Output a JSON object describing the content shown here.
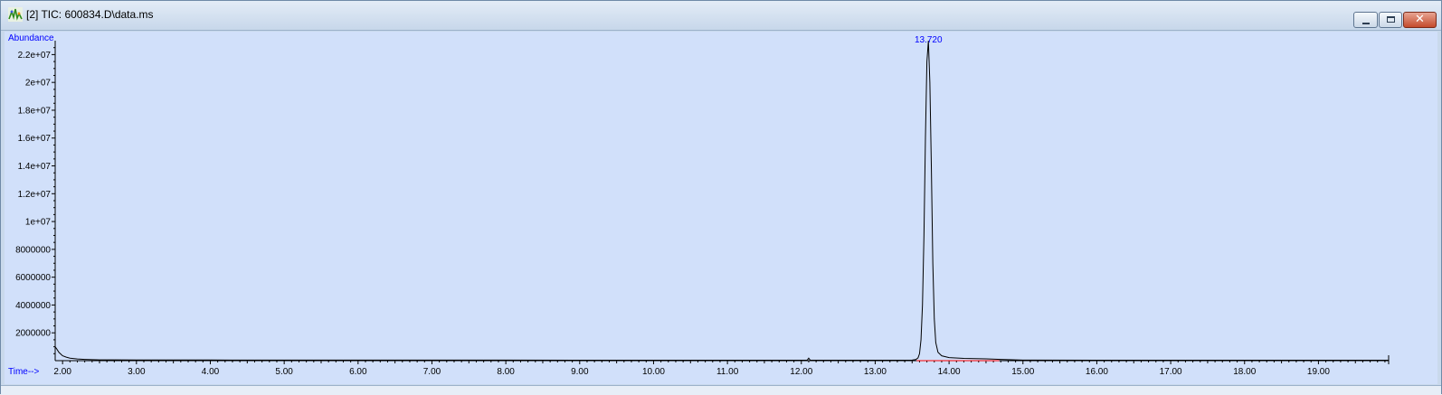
{
  "window": {
    "title": "[2] TIC: 600834.D\\data.ms",
    "icon": "chromatogram-app-icon",
    "close_glyph": "✕",
    "colors": {
      "titlebar": "#d7e3f1",
      "plot_background": "#d1e0fa",
      "trace": "#000000",
      "axis_label": "#0000ff",
      "baseline": "#ff0000"
    }
  },
  "chart_data": {
    "type": "line",
    "title": "",
    "xlabel": "Time-->",
    "ylabel": "Abundance",
    "xlim": [
      1.9,
      19.95
    ],
    "ylim": [
      0,
      23000000
    ],
    "x_ticks": [
      2,
      3,
      4,
      5,
      6,
      7,
      8,
      9,
      10,
      11,
      12,
      13,
      14,
      15,
      16,
      17,
      18,
      19
    ],
    "x_tick_labels": [
      "2.00",
      "3.00",
      "4.00",
      "5.00",
      "6.00",
      "7.00",
      "8.00",
      "9.00",
      "10.00",
      "11.00",
      "12.00",
      "13.00",
      "14.00",
      "15.00",
      "16.00",
      "17.00",
      "18.00",
      "19.00"
    ],
    "y_ticks": [
      2000000,
      4000000,
      6000000,
      8000000,
      10000000,
      12000000,
      14000000,
      16000000,
      18000000,
      20000000,
      22000000
    ],
    "y_tick_labels": [
      "2000000",
      "4000000",
      "6000000",
      "8000000",
      "1e+07",
      "1.2e+07",
      "1.4e+07",
      "1.6e+07",
      "1.8e+07",
      "2e+07",
      "2.2e+07"
    ],
    "grid": false,
    "legend": "none",
    "series": [
      {
        "x": [
          1.9,
          1.92,
          1.95,
          2.0,
          2.05,
          2.1,
          2.2,
          2.3,
          2.4,
          2.5,
          3.0,
          4.0,
          5.0,
          6.0,
          7.0,
          8.0,
          9.0,
          10.0,
          11.0,
          12.0,
          12.08,
          12.1,
          12.12,
          12.2,
          13.0,
          13.5,
          13.55,
          13.58,
          13.6,
          13.62,
          13.64,
          13.66,
          13.68,
          13.7,
          13.72,
          13.74,
          13.76,
          13.78,
          13.8,
          13.82,
          13.85,
          13.9,
          14.0,
          14.2,
          14.5,
          14.7,
          15.0,
          16.0,
          17.0,
          18.0,
          19.0,
          19.95
        ],
        "y": [
          1000000,
          850000,
          600000,
          350000,
          250000,
          180000,
          120000,
          90000,
          70000,
          60000,
          50000,
          45000,
          42000,
          40000,
          38000,
          37000,
          36000,
          36000,
          36000,
          36000,
          36000,
          180000,
          36000,
          36000,
          36000,
          40000,
          80000,
          200000,
          500000,
          1500000,
          4000000,
          9000000,
          16000000,
          21500000,
          23000000,
          20000000,
          14000000,
          7000000,
          3000000,
          1300000,
          600000,
          350000,
          220000,
          160000,
          130000,
          90000,
          40000,
          36000,
          36000,
          36000,
          36000,
          36000
        ]
      }
    ],
    "annotations": [
      {
        "x": 13.72,
        "y": 23000000,
        "text": "13.720"
      }
    ],
    "integration_baseline": {
      "x_start": 13.56,
      "x_end": 14.68
    }
  }
}
